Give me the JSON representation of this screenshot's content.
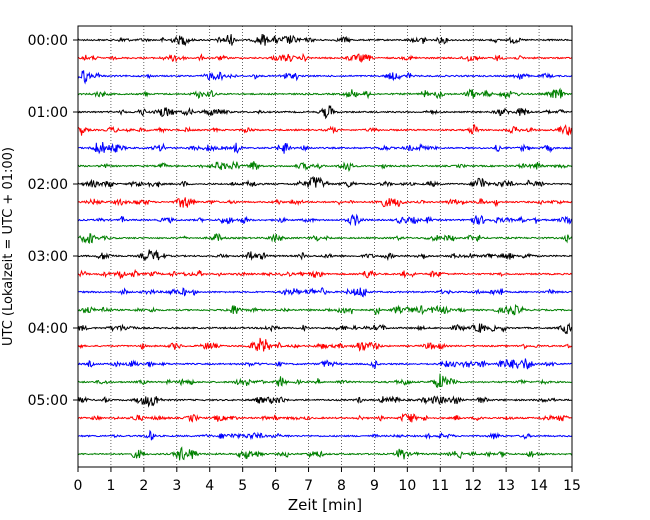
{
  "chart_data": {
    "type": "line",
    "title": "",
    "xlabel": "Zeit  [min]",
    "ylabel": "UTC (Lokalzeit = UTC + 01:00)",
    "xlim": [
      0,
      15
    ],
    "x_ticks": [
      0,
      1,
      2,
      3,
      4,
      5,
      6,
      7,
      8,
      9,
      10,
      11,
      12,
      13,
      14,
      15
    ],
    "y_tick_labels": [
      "00:00",
      "01:00",
      "02:00",
      "03:00",
      "04:00",
      "05:00"
    ],
    "grid": "vertical dotted lines at each minute",
    "legend": "none",
    "trace_interval_minutes": 15,
    "trace_colors_cycle": [
      "#000000",
      "#ff0000",
      "#0000ff",
      "#008000"
    ],
    "traces": [
      {
        "start": "00:00",
        "color": "#000000"
      },
      {
        "start": "00:15",
        "color": "#ff0000"
      },
      {
        "start": "00:30",
        "color": "#0000ff"
      },
      {
        "start": "00:45",
        "color": "#008000"
      },
      {
        "start": "01:00",
        "color": "#000000"
      },
      {
        "start": "01:15",
        "color": "#ff0000"
      },
      {
        "start": "01:30",
        "color": "#0000ff"
      },
      {
        "start": "01:45",
        "color": "#008000"
      },
      {
        "start": "02:00",
        "color": "#000000"
      },
      {
        "start": "02:15",
        "color": "#ff0000"
      },
      {
        "start": "02:30",
        "color": "#0000ff"
      },
      {
        "start": "02:45",
        "color": "#008000"
      },
      {
        "start": "03:00",
        "color": "#000000"
      },
      {
        "start": "03:15",
        "color": "#ff0000"
      },
      {
        "start": "03:30",
        "color": "#0000ff"
      },
      {
        "start": "03:45",
        "color": "#008000"
      },
      {
        "start": "04:00",
        "color": "#000000"
      },
      {
        "start": "04:15",
        "color": "#ff0000"
      },
      {
        "start": "04:30",
        "color": "#0000ff"
      },
      {
        "start": "04:45",
        "color": "#008000"
      },
      {
        "start": "05:00",
        "color": "#000000"
      },
      {
        "start": "05:15",
        "color": "#ff0000"
      },
      {
        "start": "05:30",
        "color": "#0000ff"
      },
      {
        "start": "05:45",
        "color": "#008000"
      }
    ]
  }
}
